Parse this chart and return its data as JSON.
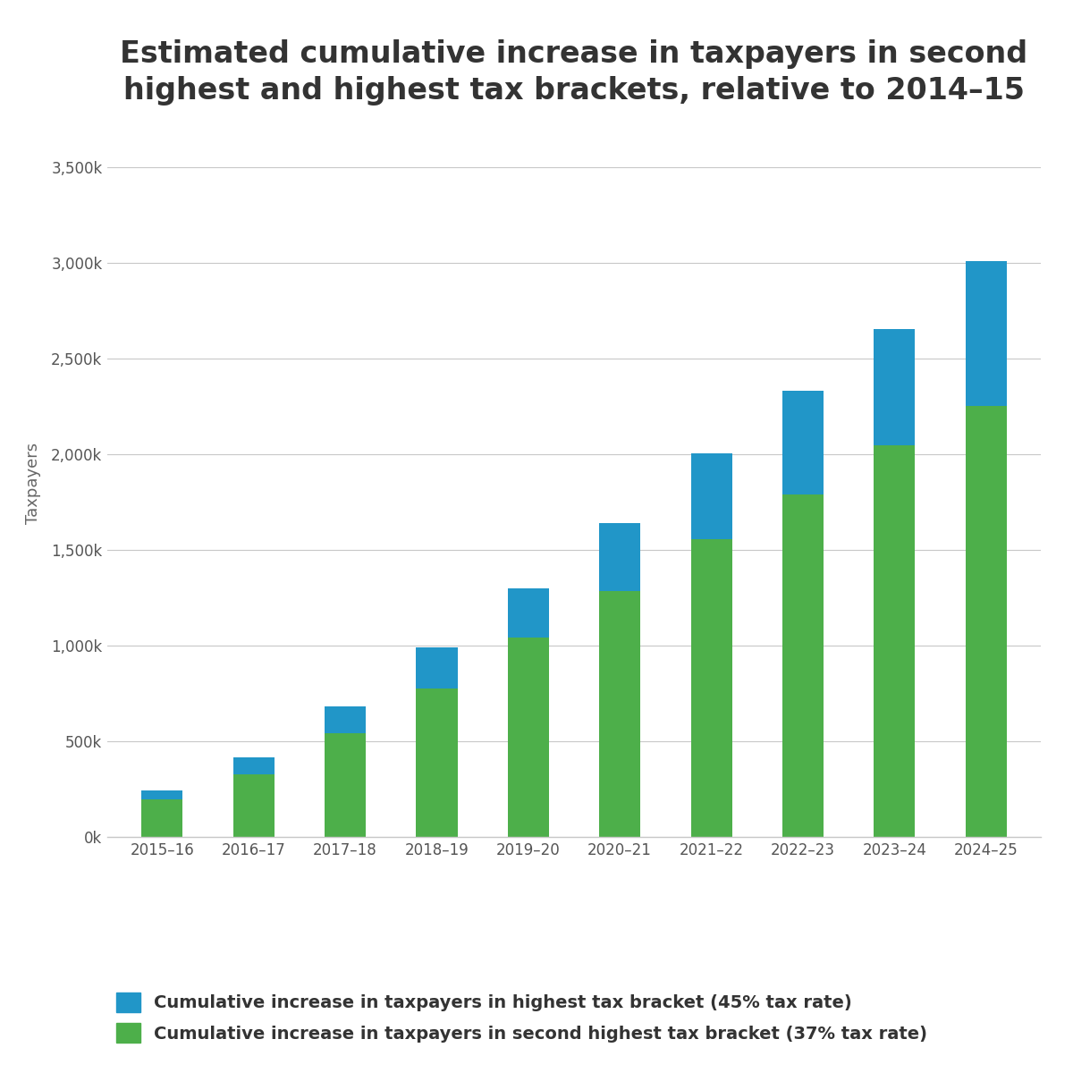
{
  "title": "Estimated cumulative increase in taxpayers in second\nhighest and highest tax brackets, relative to 2014–15",
  "categories": [
    "2015–16",
    "2016–17",
    "2017–18",
    "2018–19",
    "2019–20",
    "2020–21",
    "2021–22",
    "2022–23",
    "2023–24",
    "2024–25"
  ],
  "green_values": [
    195000,
    325000,
    540000,
    775000,
    1040000,
    1285000,
    1555000,
    1790000,
    2045000,
    2250000
  ],
  "blue_values": [
    50000,
    90000,
    140000,
    215000,
    260000,
    355000,
    450000,
    540000,
    610000,
    760000
  ],
  "ylabel": "Taxpayers",
  "yticks": [
    0,
    500000,
    1000000,
    1500000,
    2000000,
    2500000,
    3000000,
    3500000
  ],
  "ytick_labels": [
    "0k",
    "500k",
    "1,000k",
    "1,500k",
    "2,000k",
    "2,500k",
    "3,000k",
    "3,500k"
  ],
  "ylim": [
    0,
    3700000
  ],
  "bar_color_green": "#4daf4a",
  "bar_color_blue": "#2196c8",
  "legend_blue": "Cumulative increase in taxpayers in highest tax bracket (45% tax rate)",
  "legend_green": "Cumulative increase in taxpayers in second highest tax bracket (37% tax rate)",
  "background_color": "#ffffff",
  "grid_color": "#c8c8c8",
  "title_fontsize": 24,
  "ylabel_fontsize": 13,
  "tick_fontsize": 12,
  "legend_fontsize": 14
}
